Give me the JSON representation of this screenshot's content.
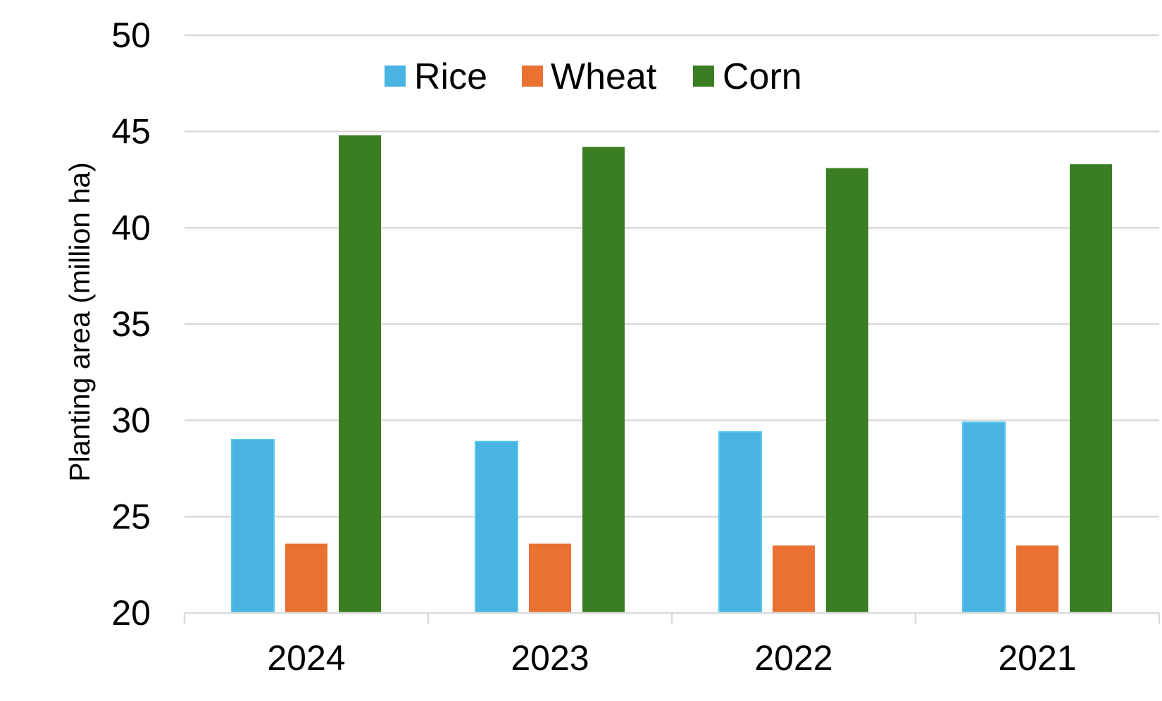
{
  "chart_data": {
    "type": "bar",
    "title": "",
    "xlabel": "",
    "ylabel": "Planting area  (million ha)",
    "ylim": [
      20,
      50
    ],
    "y_ticks": [
      20,
      25,
      30,
      35,
      40,
      45,
      50
    ],
    "grid": true,
    "legend_position": "top-center",
    "categories": [
      "2024",
      "2023",
      "2022",
      "2021"
    ],
    "series": [
      {
        "name": "Rice",
        "color": "#49B3E1",
        "values": [
          29.0,
          28.9,
          29.4,
          29.9
        ]
      },
      {
        "name": "Wheat",
        "color": "#E97132",
        "values": [
          23.6,
          23.6,
          23.5,
          23.5
        ]
      },
      {
        "name": "Corn",
        "color": "#3B7D23",
        "values": [
          44.8,
          44.2,
          43.1,
          43.3
        ]
      }
    ]
  }
}
